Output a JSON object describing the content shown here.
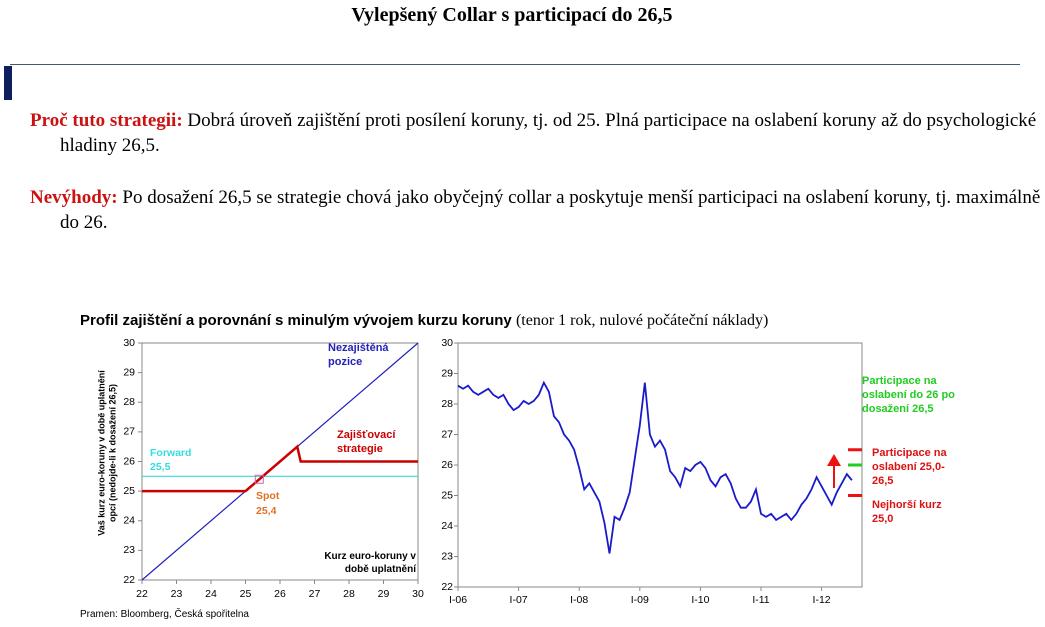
{
  "header": {
    "title": "Vylepšený Collar s participací do 26,5"
  },
  "paragraphs": [
    {
      "lead": "Proč tuto strategii:",
      "text": "Dobrá úroveň zajištění proti posílení koruny, tj. od 25. Plná participace na oslabení koruny až do psychologické hladiny 26,5."
    },
    {
      "lead": "Nevýhody:",
      "text": "Po dosažení 26,5 se strategie chová jako obyčejný collar a poskytuje menší participaci na oslabení koruny, tj. maximálně do 26."
    }
  ],
  "figure": {
    "title": "Profil zajištění a porovnání s minulým vývojem kurzu koruny",
    "subtitle": "(tenor 1 rok, nulové počáteční náklady)",
    "source": "Pramen: Bloomberg, Česká spořitelna"
  },
  "chart_data": [
    {
      "type": "line",
      "xlabel": "Kurz euro-koruny v době uplatnění",
      "ylabel": "Vaš kurz euro-koruny v době uplatnění opcí (nedojde-li k dosažení 26,5)",
      "xlim": [
        22,
        30
      ],
      "xticks": [
        22,
        23,
        24,
        25,
        26,
        27,
        28,
        29,
        30
      ],
      "ylim": [
        22,
        30
      ],
      "yticks": [
        22,
        23,
        24,
        25,
        26,
        27,
        28,
        29,
        30
      ],
      "series": [
        {
          "name": "Nezajištěná pozice",
          "color": "#2222bb",
          "x": [
            22,
            30
          ],
          "values": [
            22,
            30
          ]
        },
        {
          "name": "Zajišťovací strategie",
          "color": "#cc0000",
          "x": [
            22,
            25,
            26.5,
            26.6,
            30
          ],
          "values": [
            25,
            25,
            26.5,
            26,
            26
          ]
        }
      ],
      "reference_line": {
        "label": "Forward",
        "value": 25.5,
        "value_label": "25,5",
        "color": "#33dddd"
      },
      "spot": {
        "label": "Spot",
        "value": 25.4,
        "value_label": "25,4",
        "color": "#e07020"
      }
    },
    {
      "type": "line",
      "xlim": [
        "2006-01",
        "2012-09"
      ],
      "xticks": [
        {
          "value": "2006-01",
          "label": "I-06"
        },
        {
          "value": "2007-01",
          "label": "I-07"
        },
        {
          "value": "2008-01",
          "label": "I-08"
        },
        {
          "value": "2009-01",
          "label": "I-09"
        },
        {
          "value": "2010-01",
          "label": "I-10"
        },
        {
          "value": "2011-01",
          "label": "I-11"
        },
        {
          "value": "2012-01",
          "label": "I-12"
        }
      ],
      "ylim": [
        22,
        30
      ],
      "yticks": [
        22,
        23,
        24,
        25,
        26,
        27,
        28,
        29,
        30
      ],
      "x": [
        "2006-01",
        "2006-02",
        "2006-03",
        "2006-04",
        "2006-05",
        "2006-06",
        "2006-07",
        "2006-08",
        "2006-09",
        "2006-10",
        "2006-11",
        "2006-12",
        "2007-01",
        "2007-02",
        "2007-03",
        "2007-04",
        "2007-05",
        "2007-06",
        "2007-07",
        "2007-08",
        "2007-09",
        "2007-10",
        "2007-11",
        "2007-12",
        "2008-01",
        "2008-02",
        "2008-03",
        "2008-04",
        "2008-05",
        "2008-06",
        "2008-07",
        "2008-08",
        "2008-09",
        "2008-10",
        "2008-11",
        "2008-12",
        "2009-01",
        "2009-02",
        "2009-03",
        "2009-04",
        "2009-05",
        "2009-06",
        "2009-07",
        "2009-08",
        "2009-09",
        "2009-10",
        "2009-11",
        "2009-12",
        "2010-01",
        "2010-02",
        "2010-03",
        "2010-04",
        "2010-05",
        "2010-06",
        "2010-07",
        "2010-08",
        "2010-09",
        "2010-10",
        "2010-11",
        "2010-12",
        "2011-01",
        "2011-02",
        "2011-03",
        "2011-04",
        "2011-05",
        "2011-06",
        "2011-07",
        "2011-08",
        "2011-09",
        "2011-10",
        "2011-11",
        "2011-12",
        "2012-01",
        "2012-02",
        "2012-03",
        "2012-04",
        "2012-05",
        "2012-06",
        "2012-07"
      ],
      "series": [
        {
          "color": "#1a1acc",
          "values": [
            28.6,
            28.5,
            28.6,
            28.4,
            28.3,
            28.4,
            28.5,
            28.3,
            28.2,
            28.3,
            28.0,
            27.8,
            27.9,
            28.1,
            28.0,
            28.1,
            28.3,
            28.7,
            28.4,
            27.6,
            27.4,
            27.0,
            26.8,
            26.5,
            25.9,
            25.2,
            25.4,
            25.1,
            24.8,
            24.1,
            23.1,
            24.3,
            24.2,
            24.6,
            25.1,
            26.2,
            27.3,
            28.7,
            27.0,
            26.6,
            26.8,
            26.5,
            25.8,
            25.6,
            25.3,
            25.9,
            25.8,
            26.0,
            26.1,
            25.9,
            25.5,
            25.3,
            25.6,
            25.7,
            25.4,
            24.9,
            24.6,
            24.6,
            24.8,
            25.2,
            24.4,
            24.3,
            24.4,
            24.2,
            24.3,
            24.4,
            24.2,
            24.4,
            24.7,
            24.9,
            25.2,
            25.6,
            25.3,
            25.0,
            24.7,
            25.1,
            25.4,
            25.7,
            25.5
          ]
        }
      ],
      "levels": [
        {
          "value": 26.5,
          "color": "#ee1111"
        },
        {
          "value": 26,
          "color": "#22cc22"
        },
        {
          "value": 25,
          "color": "#ee1111"
        }
      ],
      "annotations": [
        {
          "text": "Participace na oslabení do 26 po dosažení 26,5",
          "color": "#22cc22"
        },
        {
          "text": "Participace na oslabení 25,0-26,5",
          "color": "#dd1111"
        },
        {
          "text": "Nejhorší kurz 25,0",
          "color": "#dd1111"
        }
      ]
    }
  ]
}
